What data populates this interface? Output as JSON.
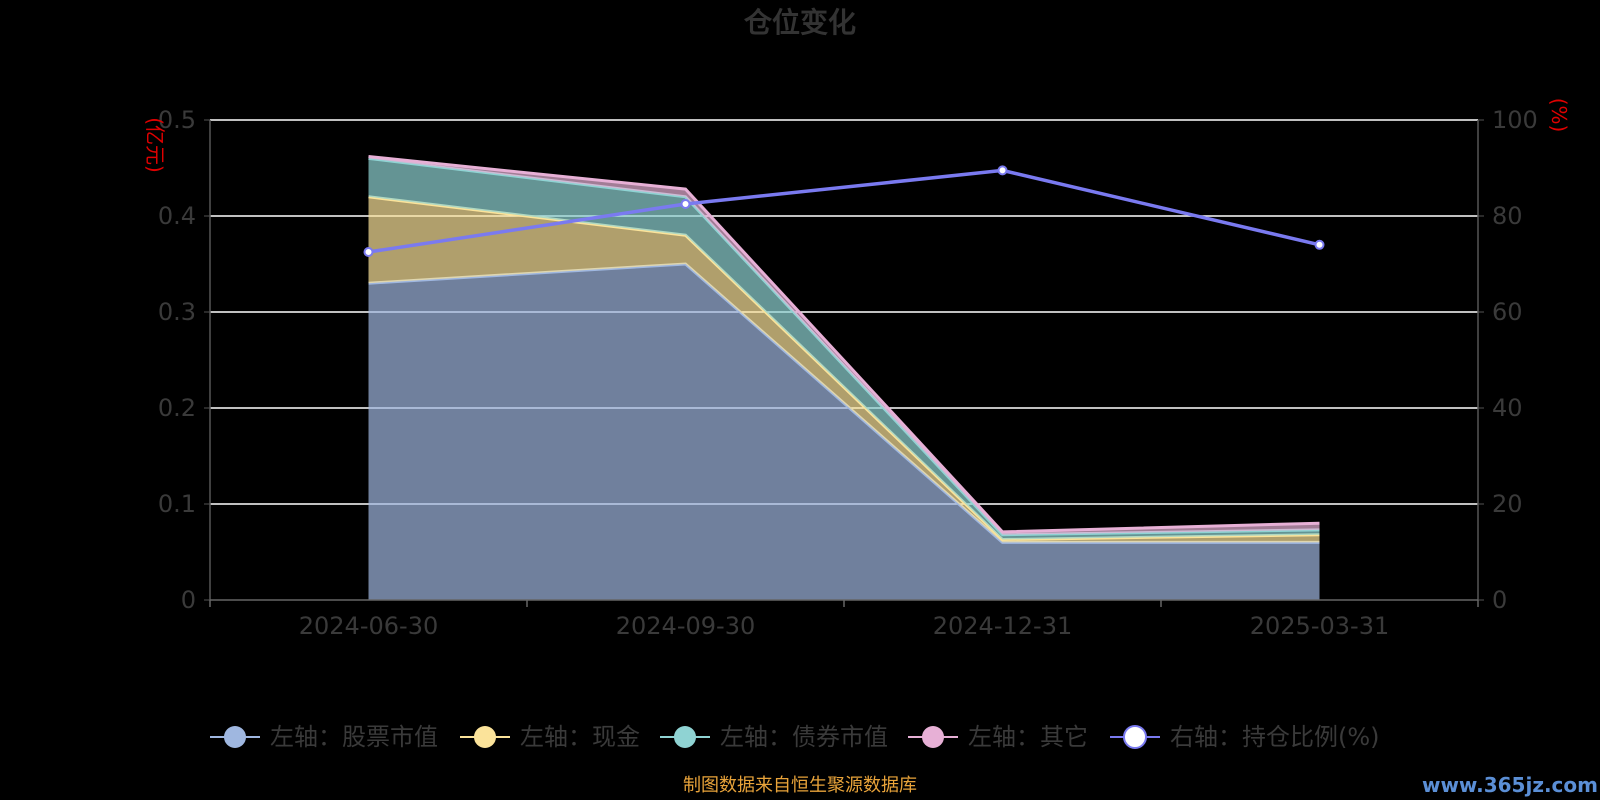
{
  "chart_data": {
    "type": "area",
    "title": "仓位变化",
    "categories": [
      "2024-06-30",
      "2024-09-30",
      "2024-12-31",
      "2025-03-31"
    ],
    "left_axis": {
      "unit": "(亿元)",
      "ylim": [
        0,
        0.5
      ],
      "ticks": [
        "0",
        "0.1",
        "0.2",
        "0.3",
        "0.4",
        "0.5"
      ]
    },
    "right_axis": {
      "unit": "(%)",
      "ylim": [
        0,
        100
      ],
      "ticks": [
        "0",
        "20",
        "40",
        "60",
        "80",
        "100"
      ]
    },
    "stacked": true,
    "series": [
      {
        "name": "左轴：股票市值",
        "axis": "left",
        "color": "#9fb7e0",
        "values": [
          0.33,
          0.35,
          0.06,
          0.06
        ]
      },
      {
        "name": "左轴：现金",
        "axis": "left",
        "color": "#fbe39a",
        "values": [
          0.09,
          0.03,
          0.003,
          0.008
        ]
      },
      {
        "name": "左轴：债券市值",
        "axis": "left",
        "color": "#8fd3d3",
        "values": [
          0.04,
          0.04,
          0.005,
          0.005
        ]
      },
      {
        "name": "左轴：其它",
        "axis": "left",
        "color": "#e7b0d6",
        "values": [
          0.002,
          0.008,
          0.003,
          0.007
        ]
      },
      {
        "name": "右轴：持仓比例(%)",
        "axis": "right",
        "type": "line",
        "color": "#7a7af0",
        "values": [
          72.5,
          82.5,
          89.5,
          74.0
        ]
      }
    ],
    "grid": true,
    "legend": "bottom"
  },
  "source_text": "制图数据来自恒生聚源数据库",
  "watermark": "www.365jz.com"
}
